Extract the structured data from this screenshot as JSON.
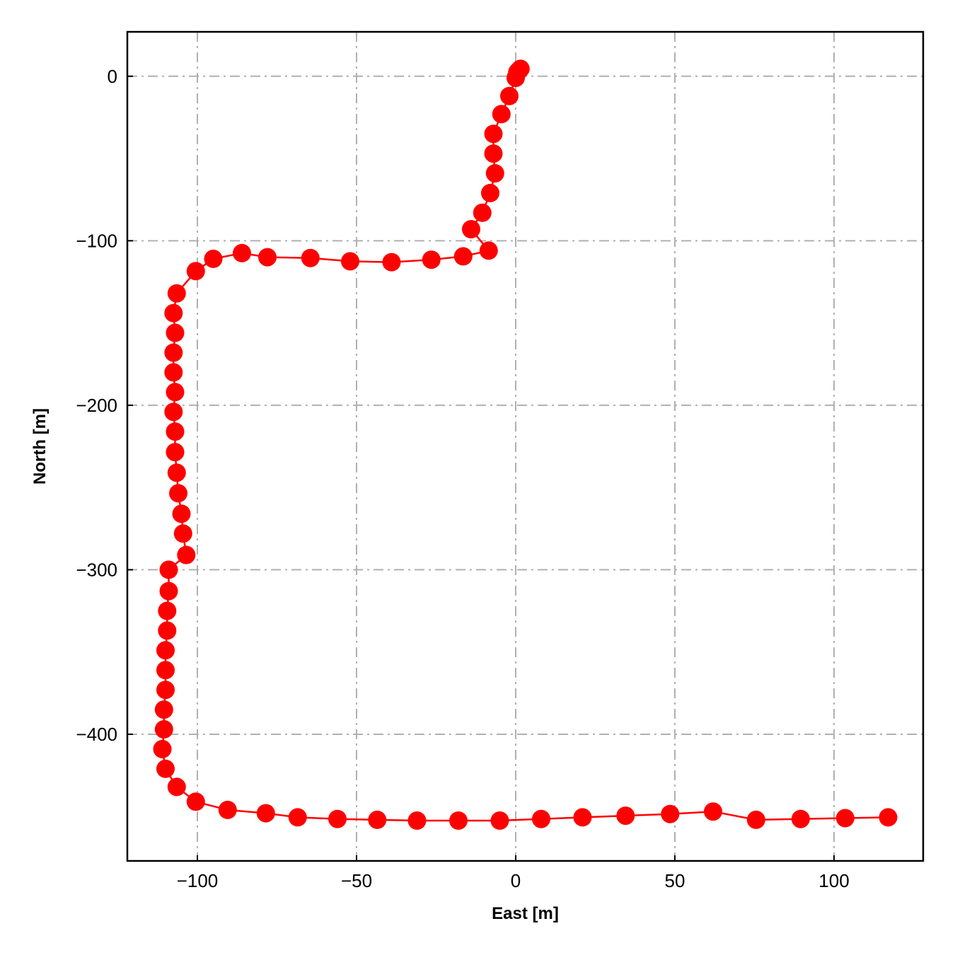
{
  "chart_data": {
    "type": "line",
    "xlabel": "East [m]",
    "ylabel": "North [m]",
    "xlim": [
      -122,
      128
    ],
    "ylim": [
      -477,
      27
    ],
    "xticks": [
      -100,
      -50,
      0,
      50,
      100
    ],
    "yticks": [
      0,
      -100,
      -200,
      -300,
      -400
    ],
    "xtick_labels": [
      "−100",
      "−50",
      "0",
      "50",
      "100"
    ],
    "ytick_labels": [
      "0",
      "−100",
      "−200",
      "−300",
      "−400"
    ],
    "grid": true,
    "series": [
      {
        "color": "#ff0000",
        "marker": "circle",
        "points": [
          [
            1.5,
            4.5
          ],
          [
            1.0,
            3.5
          ],
          [
            0.5,
            2.5
          ],
          [
            0.0,
            -1.0
          ],
          [
            -2.0,
            -12.0
          ],
          [
            -4.5,
            -23.0
          ],
          [
            -7.0,
            -35.0
          ],
          [
            -7.0,
            -47.0
          ],
          [
            -6.5,
            -59.0
          ],
          [
            -8.0,
            -71.0
          ],
          [
            -10.5,
            -83.0
          ],
          [
            -14.0,
            -93.0
          ],
          [
            -8.5,
            -106.0
          ],
          [
            -16.5,
            -109.5
          ],
          [
            -26.5,
            -111.5
          ],
          [
            -39.0,
            -113.0
          ],
          [
            -52.0,
            -112.5
          ],
          [
            -64.5,
            -110.5
          ],
          [
            -78.0,
            -110.0
          ],
          [
            -86.0,
            -107.5
          ],
          [
            -95.0,
            -111.0
          ],
          [
            -100.5,
            -118.5
          ],
          [
            -106.5,
            -132.0
          ],
          [
            -107.5,
            -144.0
          ],
          [
            -107.0,
            -156.0
          ],
          [
            -107.5,
            -168.0
          ],
          [
            -107.5,
            -180.0
          ],
          [
            -107.0,
            -192.0
          ],
          [
            -107.5,
            -204.0
          ],
          [
            -107.0,
            -216.0
          ],
          [
            -107.0,
            -228.5
          ],
          [
            -106.5,
            -241.0
          ],
          [
            -106.0,
            -253.5
          ],
          [
            -105.0,
            -266.0
          ],
          [
            -104.5,
            -278.0
          ],
          [
            -103.5,
            -291.0
          ],
          [
            -109.0,
            -300.0
          ],
          [
            -109.0,
            -313.0
          ],
          [
            -109.5,
            -325.0
          ],
          [
            -109.5,
            -337.0
          ],
          [
            -110.0,
            -349.0
          ],
          [
            -110.0,
            -361.0
          ],
          [
            -110.0,
            -373.0
          ],
          [
            -110.5,
            -385.0
          ],
          [
            -110.5,
            -397.0
          ],
          [
            -111.0,
            -409.0
          ],
          [
            -110.0,
            -421.0
          ],
          [
            -106.5,
            -432.0
          ],
          [
            -100.5,
            -441.0
          ],
          [
            -90.5,
            -446.0
          ],
          [
            -78.5,
            -448.0
          ],
          [
            -68.5,
            -450.5
          ],
          [
            -56.0,
            -451.5
          ],
          [
            -43.5,
            -452.0
          ],
          [
            -31.0,
            -452.5
          ],
          [
            -18.0,
            -452.5
          ],
          [
            -5.0,
            -452.5
          ],
          [
            8.0,
            -451.5
          ],
          [
            21.0,
            -450.5
          ],
          [
            34.5,
            -449.5
          ],
          [
            48.5,
            -448.5
          ],
          [
            62.0,
            -447.0
          ],
          [
            75.5,
            -452.0
          ],
          [
            89.5,
            -451.5
          ],
          [
            103.5,
            -451.0
          ],
          [
            117.0,
            -450.5
          ]
        ]
      }
    ]
  }
}
